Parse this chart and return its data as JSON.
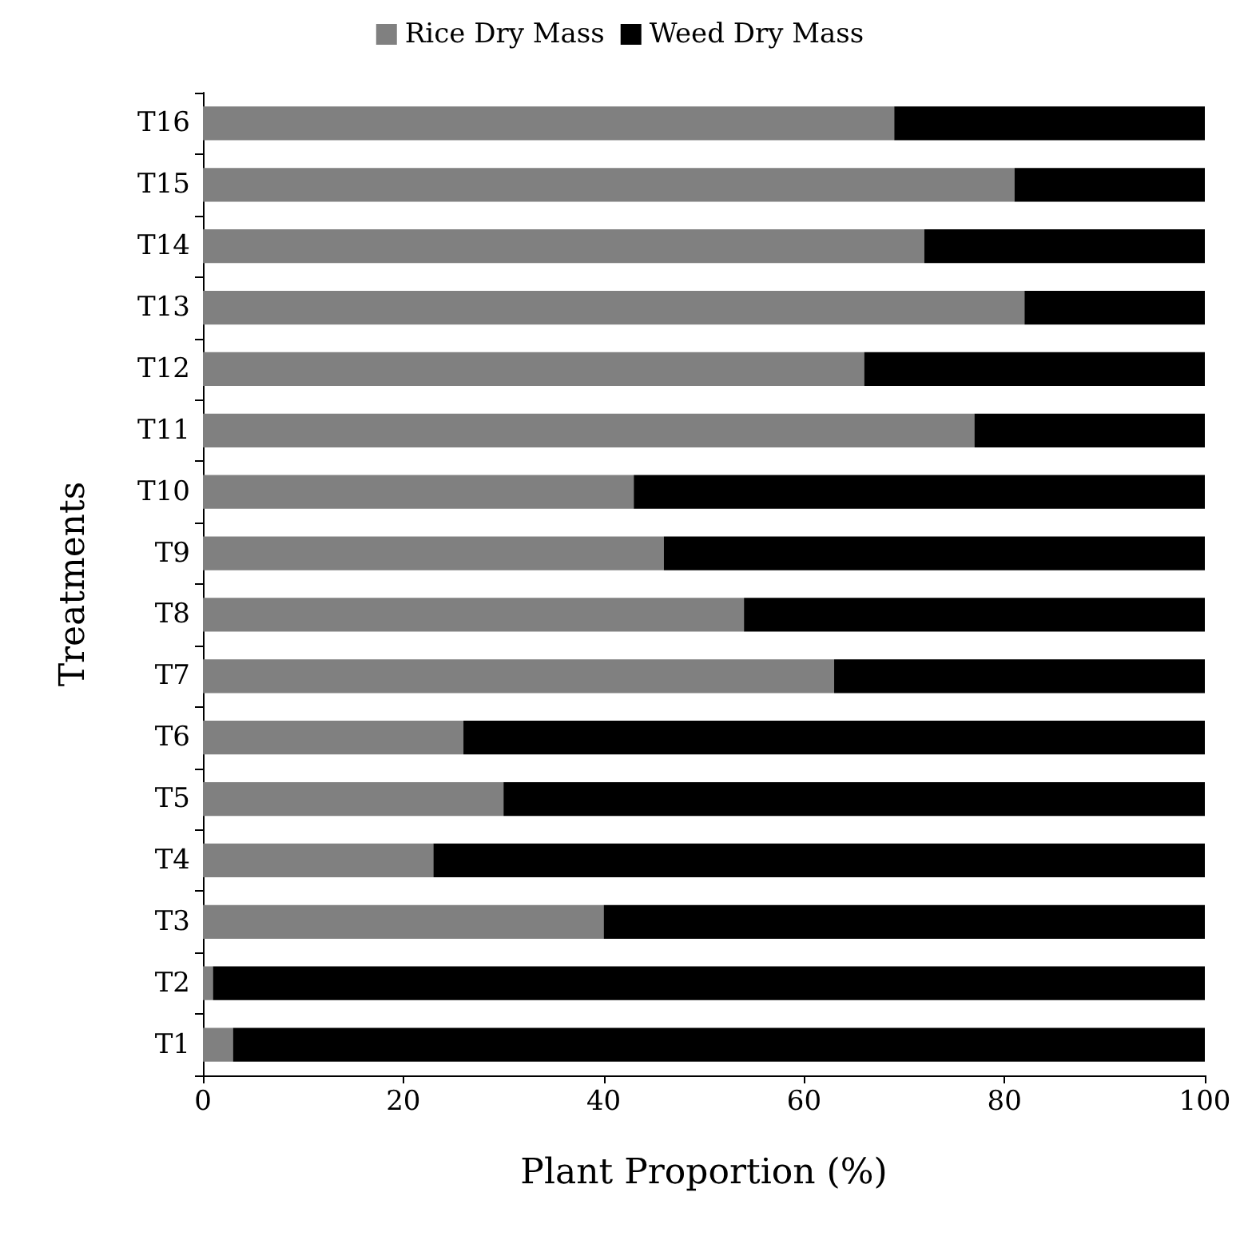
{
  "chart_data": {
    "type": "bar",
    "orientation": "horizontal",
    "stacked": true,
    "xlabel": "Plant Proportion (%)",
    "ylabel": "Treatments",
    "categories": [
      "T16",
      "T15",
      "T14",
      "T13",
      "T12",
      "T11",
      "T10",
      "T9",
      "T8",
      "T7",
      "T6",
      "T5",
      "T4",
      "T3",
      "T2",
      "T1"
    ],
    "series": [
      {
        "name": "Rice Dry Mass",
        "color": "#808080",
        "values": [
          69,
          81,
          72,
          82,
          66,
          77,
          43,
          46,
          54,
          63,
          26,
          30,
          23,
          40,
          1,
          3
        ]
      },
      {
        "name": "Weed Dry Mass",
        "color": "#000000",
        "values": [
          31,
          19,
          28,
          18,
          34,
          23,
          57,
          54,
          46,
          37,
          74,
          70,
          77,
          60,
          99,
          97
        ]
      }
    ],
    "xlim": [
      0,
      100
    ],
    "xticks": [
      0,
      20,
      40,
      60,
      80,
      100
    ],
    "grid": false,
    "legend": "top"
  }
}
